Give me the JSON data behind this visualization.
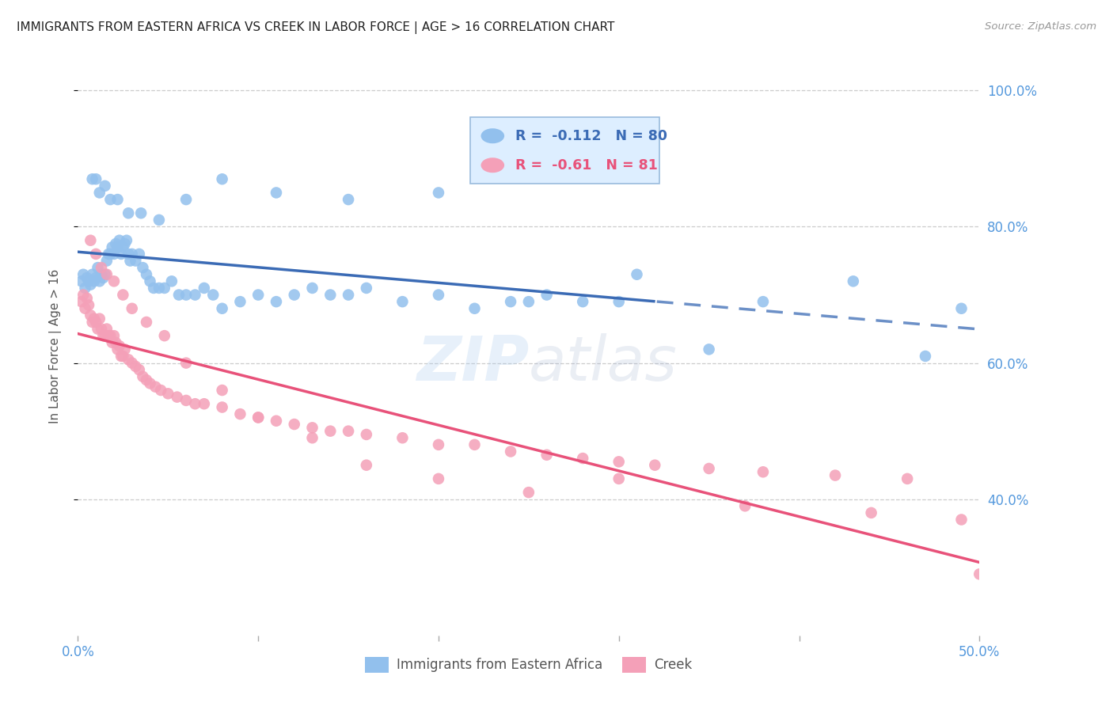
{
  "title": "IMMIGRANTS FROM EASTERN AFRICA VS CREEK IN LABOR FORCE | AGE > 16 CORRELATION CHART",
  "source": "Source: ZipAtlas.com",
  "ylabel": "In Labor Force | Age > 16",
  "xlim": [
    0.0,
    0.5
  ],
  "ylim": [
    0.2,
    1.05
  ],
  "yticks": [
    0.4,
    0.6,
    0.8,
    1.0
  ],
  "xticks": [
    0.0,
    0.1,
    0.2,
    0.3,
    0.4,
    0.5
  ],
  "ytick_labels": [
    "40.0%",
    "60.0%",
    "80.0%",
    "100.0%"
  ],
  "xtick_labels": [
    "0.0%",
    "",
    "",
    "",
    "",
    "50.0%"
  ],
  "series1_name": "Immigrants from Eastern Africa",
  "series1_color": "#92C0ED",
  "series1_line_color": "#3B6BB5",
  "series1_R": -0.112,
  "series1_N": 80,
  "series2_name": "Creek",
  "series2_color": "#F4A0B8",
  "series2_line_color": "#E8527A",
  "series2_R": -0.61,
  "series2_N": 81,
  "background_color": "#ffffff",
  "grid_color": "#cccccc",
  "title_color": "#222222",
  "axis_color": "#5599dd",
  "watermark_text": "ZIPatlas",
  "legend_box_color": "#ddeeff",
  "legend_box_edge": "#99bbdd",
  "line1_solid_end": 0.32,
  "series1_x": [
    0.002,
    0.003,
    0.004,
    0.005,
    0.006,
    0.007,
    0.008,
    0.009,
    0.01,
    0.011,
    0.012,
    0.013,
    0.014,
    0.015,
    0.016,
    0.017,
    0.018,
    0.019,
    0.02,
    0.021,
    0.022,
    0.023,
    0.024,
    0.025,
    0.026,
    0.027,
    0.028,
    0.029,
    0.03,
    0.032,
    0.034,
    0.036,
    0.038,
    0.04,
    0.042,
    0.045,
    0.048,
    0.052,
    0.056,
    0.06,
    0.065,
    0.07,
    0.075,
    0.08,
    0.09,
    0.1,
    0.11,
    0.12,
    0.13,
    0.14,
    0.15,
    0.16,
    0.18,
    0.2,
    0.22,
    0.24,
    0.26,
    0.28,
    0.3,
    0.35,
    0.008,
    0.01,
    0.012,
    0.015,
    0.018,
    0.022,
    0.028,
    0.035,
    0.045,
    0.06,
    0.08,
    0.11,
    0.15,
    0.2,
    0.25,
    0.31,
    0.38,
    0.43,
    0.47,
    0.49
  ],
  "series1_y": [
    0.72,
    0.73,
    0.71,
    0.725,
    0.72,
    0.715,
    0.73,
    0.72,
    0.725,
    0.74,
    0.72,
    0.73,
    0.725,
    0.73,
    0.75,
    0.76,
    0.76,
    0.77,
    0.76,
    0.775,
    0.77,
    0.78,
    0.76,
    0.77,
    0.775,
    0.78,
    0.76,
    0.75,
    0.76,
    0.75,
    0.76,
    0.74,
    0.73,
    0.72,
    0.71,
    0.71,
    0.71,
    0.72,
    0.7,
    0.7,
    0.7,
    0.71,
    0.7,
    0.68,
    0.69,
    0.7,
    0.69,
    0.7,
    0.71,
    0.7,
    0.7,
    0.71,
    0.69,
    0.7,
    0.68,
    0.69,
    0.7,
    0.69,
    0.69,
    0.62,
    0.87,
    0.87,
    0.85,
    0.86,
    0.84,
    0.84,
    0.82,
    0.82,
    0.81,
    0.84,
    0.87,
    0.85,
    0.84,
    0.85,
    0.69,
    0.73,
    0.69,
    0.72,
    0.61,
    0.68
  ],
  "series2_x": [
    0.002,
    0.003,
    0.004,
    0.005,
    0.006,
    0.007,
    0.008,
    0.009,
    0.01,
    0.011,
    0.012,
    0.013,
    0.014,
    0.015,
    0.016,
    0.017,
    0.018,
    0.019,
    0.02,
    0.021,
    0.022,
    0.023,
    0.024,
    0.025,
    0.026,
    0.028,
    0.03,
    0.032,
    0.034,
    0.036,
    0.038,
    0.04,
    0.043,
    0.046,
    0.05,
    0.055,
    0.06,
    0.065,
    0.07,
    0.08,
    0.09,
    0.1,
    0.11,
    0.12,
    0.13,
    0.14,
    0.15,
    0.16,
    0.18,
    0.2,
    0.22,
    0.24,
    0.26,
    0.28,
    0.3,
    0.32,
    0.35,
    0.38,
    0.42,
    0.46,
    0.007,
    0.01,
    0.013,
    0.016,
    0.02,
    0.025,
    0.03,
    0.038,
    0.048,
    0.06,
    0.08,
    0.1,
    0.13,
    0.16,
    0.2,
    0.25,
    0.3,
    0.37,
    0.44,
    0.49,
    0.5
  ],
  "series2_y": [
    0.69,
    0.7,
    0.68,
    0.695,
    0.685,
    0.67,
    0.66,
    0.665,
    0.66,
    0.65,
    0.665,
    0.65,
    0.64,
    0.64,
    0.65,
    0.64,
    0.64,
    0.63,
    0.64,
    0.63,
    0.62,
    0.625,
    0.61,
    0.61,
    0.62,
    0.605,
    0.6,
    0.595,
    0.59,
    0.58,
    0.575,
    0.57,
    0.565,
    0.56,
    0.555,
    0.55,
    0.545,
    0.54,
    0.54,
    0.535,
    0.525,
    0.52,
    0.515,
    0.51,
    0.505,
    0.5,
    0.5,
    0.495,
    0.49,
    0.48,
    0.48,
    0.47,
    0.465,
    0.46,
    0.455,
    0.45,
    0.445,
    0.44,
    0.435,
    0.43,
    0.78,
    0.76,
    0.74,
    0.73,
    0.72,
    0.7,
    0.68,
    0.66,
    0.64,
    0.6,
    0.56,
    0.52,
    0.49,
    0.45,
    0.43,
    0.41,
    0.43,
    0.39,
    0.38,
    0.37,
    0.29
  ]
}
